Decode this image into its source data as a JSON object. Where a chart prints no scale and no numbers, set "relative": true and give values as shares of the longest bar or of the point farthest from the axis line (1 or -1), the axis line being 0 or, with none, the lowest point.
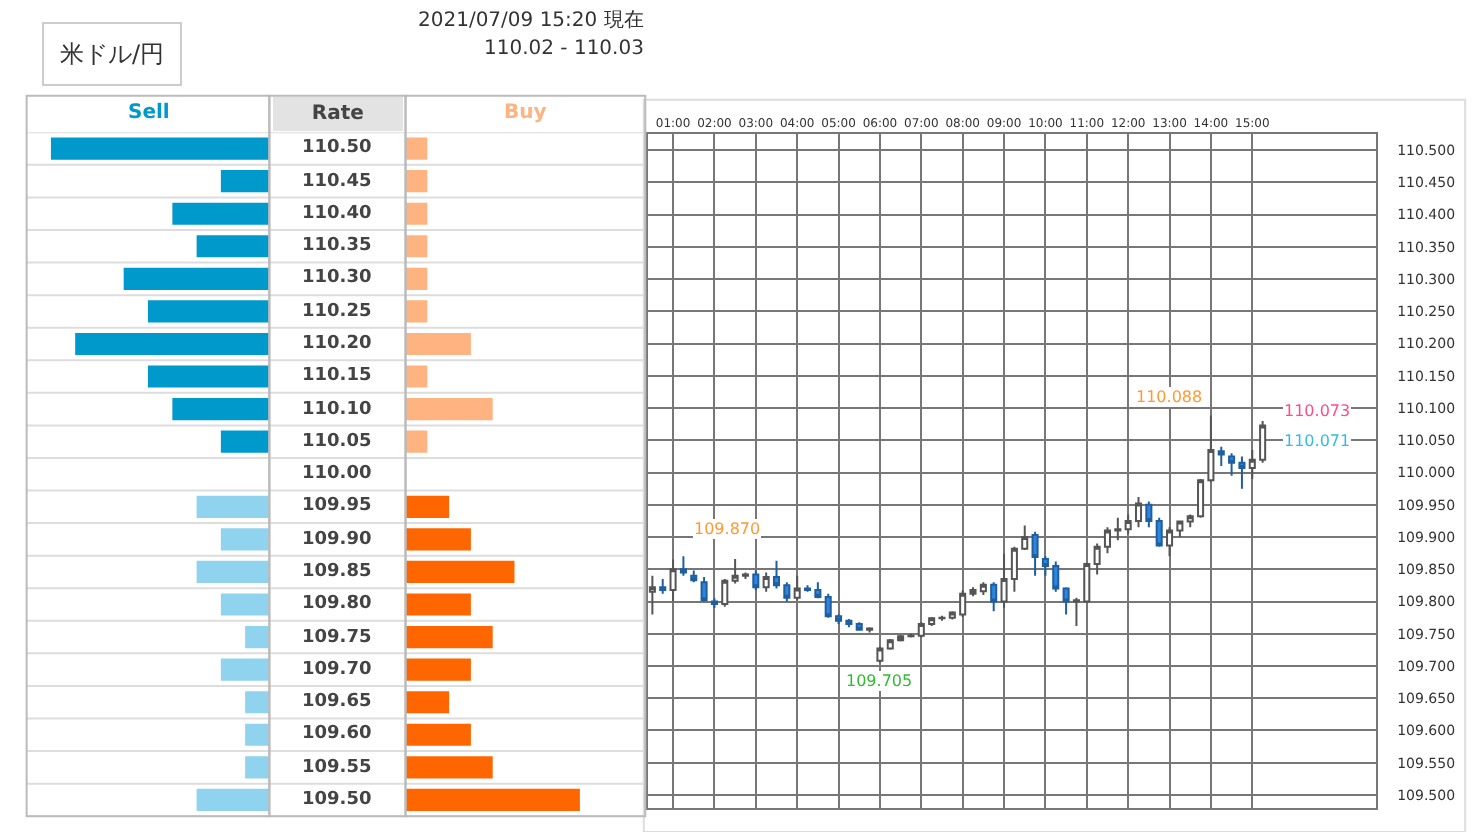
{
  "chart_data": [
    {
      "type": "bar",
      "orientation": "horizontal",
      "relative": true,
      "title": "Sell",
      "ylabel": "Rate",
      "categories": [
        "110.50",
        "110.45",
        "110.40",
        "110.35",
        "110.30",
        "110.25",
        "110.20",
        "110.15",
        "110.10",
        "110.05",
        "110.00",
        "109.95",
        "109.90",
        "109.85",
        "109.80",
        "109.75",
        "109.70",
        "109.65",
        "109.60",
        "109.55",
        "109.50"
      ],
      "values": [
        1,
        0.222,
        0.444,
        0.333,
        0.667,
        0.556,
        0.889,
        0.556,
        0.444,
        0.222,
        null,
        0.333,
        0.222,
        0.333,
        0.222,
        0.111,
        0.222,
        0.111,
        0.111,
        0.111,
        0.333
      ],
      "colors": [
        "#0099cc",
        "#0099cc",
        "#0099cc",
        "#0099cc",
        "#0099cc",
        "#0099cc",
        "#0099cc",
        "#0099cc",
        "#0099cc",
        "#0099cc",
        "#0099cc",
        "#8fd3ee",
        "#8fd3ee",
        "#8fd3ee",
        "#8fd3ee",
        "#8fd3ee",
        "#8fd3ee",
        "#8fd3ee",
        "#8fd3ee",
        "#8fd3ee",
        "#8fd3ee"
      ],
      "annotations": [
        "米ドル/円",
        "2021/07/09 15:20 現在",
        "110.02 - 110.03"
      ]
    },
    {
      "type": "bar",
      "orientation": "horizontal",
      "relative": true,
      "title": "Buy",
      "tick_labels": false,
      "categories": [
        "110.50",
        "110.45",
        "110.40",
        "110.35",
        "110.30",
        "110.25",
        "110.20",
        "110.15",
        "110.10",
        "110.05",
        "110.00",
        "109.95",
        "109.90",
        "109.85",
        "109.80",
        "109.75",
        "109.70",
        "109.65",
        "109.60",
        "109.55",
        "109.50"
      ],
      "values": [
        0.125,
        0.125,
        0.125,
        0.125,
        0.125,
        0.125,
        0.375,
        0.125,
        0.5,
        0.125,
        null,
        0.25,
        0.375,
        0.625,
        0.375,
        0.5,
        0.375,
        0.25,
        0.375,
        0.5,
        1
      ],
      "colors": [
        "#ffb380",
        "#ffb380",
        "#ffb380",
        "#ffb380",
        "#ffb380",
        "#ffb380",
        "#ffb380",
        "#ffb380",
        "#ffb380",
        "#ffb380",
        "#ff6600",
        "#ff6600",
        "#ff6600",
        "#ff6600",
        "#ff6600",
        "#ff6600",
        "#ff6600",
        "#ff6600",
        "#ff6600",
        "#ff6600",
        "#ff6600"
      ]
    },
    {
      "type": "candlestick",
      "grid": true,
      "x": [
        0.5,
        0.75,
        1,
        1.25,
        1.5,
        1.75,
        2,
        2.25,
        2.5,
        2.75,
        3,
        3.25,
        3.5,
        3.75,
        4,
        4.25,
        4.5,
        4.75,
        5,
        5.25,
        5.5,
        5.75,
        6,
        6.25,
        6.5,
        6.75,
        7,
        7.25,
        7.5,
        7.75,
        8,
        8.25,
        8.5,
        8.75,
        9,
        9.25,
        9.5,
        9.75,
        10,
        10.25,
        10.5,
        10.75,
        11,
        11.25,
        11.5,
        11.75,
        12,
        12.25,
        12.5,
        12.75,
        13,
        13.25,
        13.5,
        13.75,
        14,
        14.25,
        14.5,
        14.75,
        15,
        15.25
      ],
      "ohlc": [
        [
          109.815,
          109.84,
          109.78,
          109.822
        ],
        [
          109.822,
          109.835,
          109.812,
          109.818
        ],
        [
          109.818,
          109.865,
          109.8,
          109.85
        ],
        [
          109.85,
          109.87,
          109.84,
          109.845
        ],
        [
          109.84,
          109.848,
          109.83,
          109.833
        ],
        [
          109.83,
          109.838,
          109.8,
          109.802
        ],
        [
          109.8,
          109.805,
          109.79,
          109.796
        ],
        [
          109.796,
          109.835,
          109.792,
          109.832
        ],
        [
          109.832,
          109.866,
          109.828,
          109.84
        ],
        [
          109.84,
          109.845,
          109.835,
          109.842
        ],
        [
          109.842,
          109.848,
          109.818,
          109.822
        ],
        [
          109.822,
          109.845,
          109.815,
          109.838
        ],
        [
          109.838,
          109.863,
          109.82,
          109.825
        ],
        [
          109.825,
          109.83,
          109.8,
          109.806
        ],
        [
          109.806,
          109.84,
          109.802,
          109.82
        ],
        [
          109.82,
          109.825,
          109.815,
          109.818
        ],
        [
          109.818,
          109.83,
          109.805,
          109.807
        ],
        [
          109.807,
          109.812,
          109.775,
          109.777
        ],
        [
          109.777,
          109.78,
          109.765,
          109.77
        ],
        [
          109.77,
          109.773,
          109.76,
          109.765
        ],
        [
          109.765,
          109.768,
          109.755,
          109.756
        ],
        [
          109.756,
          109.76,
          109.752,
          109.758
        ],
        [
          109.708,
          109.73,
          109.705,
          109.727
        ],
        [
          109.727,
          109.742,
          109.725,
          109.74
        ],
        [
          109.74,
          109.748,
          109.738,
          109.746
        ],
        [
          109.746,
          109.75,
          109.744,
          109.747
        ],
        [
          109.747,
          109.768,
          109.744,
          109.765
        ],
        [
          109.765,
          109.776,
          109.762,
          109.774
        ],
        [
          109.774,
          109.778,
          109.77,
          109.775
        ],
        [
          109.775,
          109.785,
          109.772,
          109.783
        ],
        [
          109.78,
          109.817,
          109.776,
          109.812
        ],
        [
          109.812,
          109.822,
          109.808,
          109.818
        ],
        [
          109.816,
          109.83,
          109.81,
          109.826
        ],
        [
          109.826,
          109.83,
          109.785,
          109.8
        ],
        [
          109.8,
          109.874,
          109.79,
          109.835
        ],
        [
          109.835,
          109.885,
          109.815,
          109.882
        ],
        [
          109.882,
          109.918,
          109.88,
          109.9
        ],
        [
          109.903,
          109.908,
          109.84,
          109.869
        ],
        [
          109.866,
          109.87,
          109.84,
          109.855
        ],
        [
          109.855,
          109.862,
          109.815,
          109.82
        ],
        [
          109.82,
          109.822,
          109.78,
          109.8
        ],
        [
          109.8,
          109.806,
          109.762,
          109.802
        ],
        [
          109.8,
          109.86,
          109.798,
          109.858
        ],
        [
          109.858,
          109.89,
          109.842,
          109.885
        ],
        [
          109.885,
          109.915,
          109.875,
          109.91
        ],
        [
          109.91,
          109.93,
          109.895,
          109.912
        ],
        [
          109.912,
          109.935,
          109.905,
          109.925
        ],
        [
          109.925,
          109.962,
          109.915,
          109.952
        ],
        [
          109.95,
          109.955,
          109.915,
          109.925
        ],
        [
          109.925,
          109.93,
          109.885,
          109.887
        ],
        [
          109.887,
          109.915,
          109.87,
          109.91
        ],
        [
          109.91,
          109.925,
          109.9,
          109.924
        ],
        [
          109.924,
          109.935,
          109.915,
          109.932
        ],
        [
          109.932,
          109.99,
          109.93,
          109.988
        ],
        [
          109.988,
          110.088,
          109.985,
          110.035
        ],
        [
          110.033,
          110.04,
          110.01,
          110.028
        ],
        [
          110.025,
          110.03,
          109.995,
          110.015
        ],
        [
          110.015,
          110.025,
          109.975,
          110.007
        ],
        [
          110.007,
          110.035,
          109.99,
          110.02
        ],
        [
          110.02,
          110.08,
          110.015,
          110.073
        ]
      ],
      "xlim": [
        0.4,
        18
      ],
      "xticks": [
        {
          "value": 1,
          "label": "01:00"
        },
        {
          "value": 2,
          "label": "02:00"
        },
        {
          "value": 3,
          "label": "03:00"
        },
        {
          "value": 4,
          "label": "04:00"
        },
        {
          "value": 5,
          "label": "05:00"
        },
        {
          "value": 6,
          "label": "06:00"
        },
        {
          "value": 7,
          "label": "07:00"
        },
        {
          "value": 8,
          "label": "08:00"
        },
        {
          "value": 9,
          "label": "09:00"
        },
        {
          "value": 10,
          "label": "10:00"
        },
        {
          "value": 11,
          "label": "11:00"
        },
        {
          "value": 12,
          "label": "12:00"
        },
        {
          "value": 13,
          "label": "13:00"
        },
        {
          "value": 14,
          "label": "14:00"
        },
        {
          "value": 15,
          "label": "15:00"
        }
      ],
      "ylim": [
        109.48,
        110.525
      ],
      "yticks": [
        {
          "value": 109.5,
          "label": "109.500"
        },
        {
          "value": 109.55,
          "label": "109.550"
        },
        {
          "value": 109.6,
          "label": "109.600"
        },
        {
          "value": 109.65,
          "label": "109.650"
        },
        {
          "value": 109.7,
          "label": "109.700"
        },
        {
          "value": 109.75,
          "label": "109.750"
        },
        {
          "value": 109.8,
          "label": "109.800"
        },
        {
          "value": 109.85,
          "label": "109.850"
        },
        {
          "value": 109.9,
          "label": "109.900"
        },
        {
          "value": 109.95,
          "label": "109.950"
        },
        {
          "value": 110.0,
          "label": "110.000"
        },
        {
          "value": 110.05,
          "label": "110.050"
        },
        {
          "value": 110.1,
          "label": "110.100"
        },
        {
          "value": 110.15,
          "label": "110.150"
        },
        {
          "value": 110.2,
          "label": "110.200"
        },
        {
          "value": 110.25,
          "label": "110.250"
        },
        {
          "value": 110.3,
          "label": "110.300"
        },
        {
          "value": 110.35,
          "label": "110.350"
        },
        {
          "value": 110.4,
          "label": "110.400"
        },
        {
          "value": 110.45,
          "label": "110.450"
        },
        {
          "value": 110.5,
          "label": "110.500"
        }
      ],
      "annotations": [
        {
          "text": "109.870",
          "x": 1.25,
          "y": 109.87
        },
        {
          "text": "109.705",
          "x": 6.0,
          "y": 109.705
        },
        {
          "text": "110.088",
          "x": 14.0,
          "y": 110.088
        },
        {
          "text": "110.073",
          "x": 15.25,
          "y": 110.073
        },
        {
          "text": "110.071",
          "x": 15.25,
          "y": 110.071
        }
      ]
    }
  ]
}
